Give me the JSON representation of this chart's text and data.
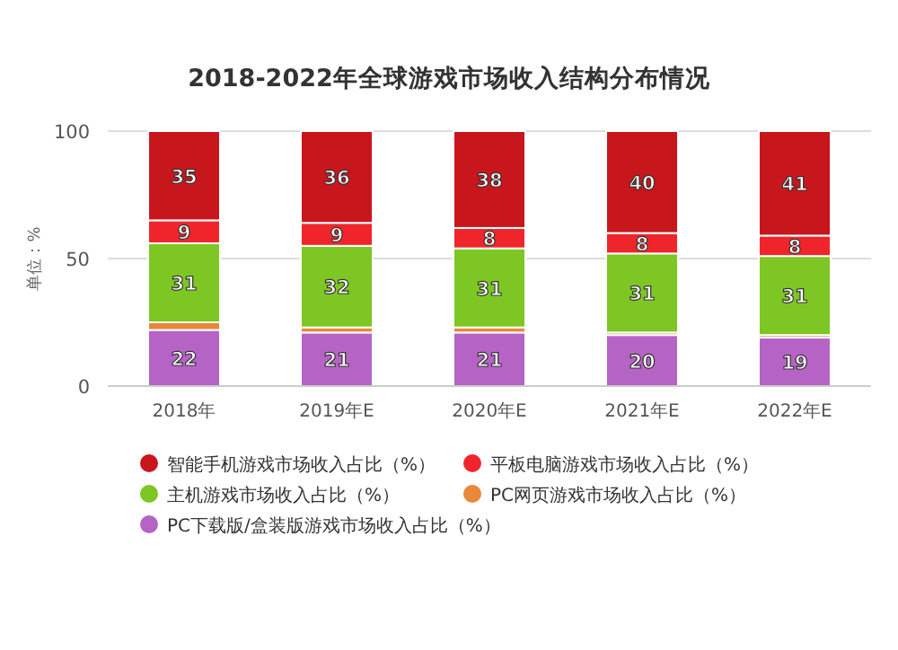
{
  "chart_data": {
    "type": "bar",
    "stacked": true,
    "title": "2018-2022年全球游戏市场收入结构分布情况",
    "ylabel": "单位：%",
    "categories": [
      "2018年",
      "2019年E",
      "2020年E",
      "2021年E",
      "2022年E"
    ],
    "ylim": [
      0,
      100
    ],
    "yticks": [
      0,
      50,
      100
    ],
    "grid": "y",
    "legend": "bottom",
    "data_labels": true,
    "series": [
      {
        "name": "PC下载版/盒装版游戏市场收入占比（%）",
        "color": "#b663c6",
        "values": [
          22,
          21,
          21,
          20,
          19
        ]
      },
      {
        "name": "PC网页游戏市场收入占比（%）",
        "color": "#e8883a",
        "values": [
          3,
          2,
          2,
          1,
          1
        ],
        "value_labels": [
          null,
          null,
          null,
          null,
          null
        ]
      },
      {
        "name": "主机游戏市场收入占比（%）",
        "color": "#7dc623",
        "values": [
          31,
          32,
          31,
          31,
          31
        ]
      },
      {
        "name": "平板电脑游戏市场收入占比（%）",
        "color": "#f0252b",
        "values": [
          9,
          9,
          8,
          8,
          8
        ]
      },
      {
        "name": "智能手机游戏市场收入占比（%）",
        "color": "#c8161d",
        "values": [
          35,
          36,
          38,
          40,
          41
        ]
      }
    ]
  }
}
